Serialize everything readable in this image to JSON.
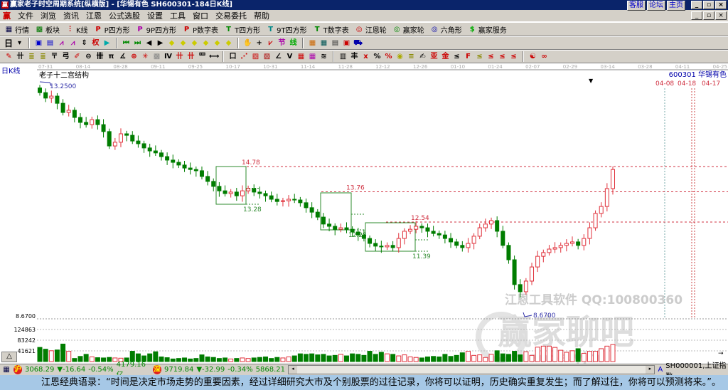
{
  "window": {
    "title": "赢家老子时空周期系统[纵横版] - [华锡有色   SH600301-184日K线]",
    "logo": "赢",
    "links": [
      "客服",
      "论坛",
      "主页"
    ],
    "controls": [
      "_",
      "▫",
      "×"
    ]
  },
  "menu": {
    "items": [
      "文件",
      "浏览",
      "资讯",
      "江恩",
      "公式选股",
      "设置",
      "工具",
      "窗口",
      "交易委托",
      "帮助"
    ]
  },
  "toolbar1": [
    {
      "icon": "quote-grid-icon",
      "glyph": "▦",
      "color": "#004",
      "label": "行情"
    },
    {
      "icon": "sector-blocks-icon",
      "glyph": "▩",
      "color": "#070",
      "label": "板块"
    },
    {
      "icon": "kline-icon",
      "glyph": "⫶",
      "color": "#c00",
      "label": "K线"
    },
    {
      "icon": "ps-icon",
      "glyph": "P",
      "color": "#c00",
      "label": "P四方形"
    },
    {
      "icon": "p9-icon",
      "glyph": "P",
      "color": "#a0a",
      "label": "9P四方形"
    },
    {
      "icon": "pn-icon",
      "glyph": "P",
      "color": "#c00",
      "label": "P数字表"
    },
    {
      "icon": "ts-icon",
      "glyph": "T",
      "color": "#080",
      "label": "T四方形"
    },
    {
      "icon": "t9-icon",
      "glyph": "T",
      "color": "#088",
      "label": "9T四方形"
    },
    {
      "icon": "tn-icon",
      "glyph": "T",
      "color": "#080",
      "label": "T数字表"
    },
    {
      "icon": "gann-wheel-icon",
      "glyph": "◎",
      "color": "#c00",
      "label": "江恩轮"
    },
    {
      "icon": "winner-wheel-icon",
      "glyph": "◎",
      "color": "#080",
      "label": "赢家轮"
    },
    {
      "icon": "hexagon-icon",
      "glyph": "◎",
      "color": "#00a",
      "label": "六角形"
    },
    {
      "icon": "dollar-icon",
      "glyph": "$",
      "color": "#0a0",
      "label": "赢家服务"
    }
  ],
  "toolbar2": {
    "period": "日",
    "icons": [
      {
        "n": "chart-type-icon",
        "g": "▾",
        "c": "#000"
      },
      {
        "n": "sep"
      },
      {
        "n": "draw-icon",
        "g": "▣",
        "c": "#00c"
      },
      {
        "n": "calendar-icon",
        "g": "▤",
        "c": "#00c"
      },
      {
        "n": "indicator1-icon",
        "g": "⩘",
        "c": "#a0a"
      },
      {
        "n": "indicator2-icon",
        "g": "⩘",
        "c": "#a0a"
      },
      {
        "n": "candle-type-icon",
        "g": "⇕",
        "c": "#000"
      },
      {
        "n": "weight-icon",
        "g": "权",
        "c": "#c00"
      },
      {
        "n": "flag-icon",
        "g": "▶",
        "c": "#0aa"
      },
      {
        "n": "sep"
      },
      {
        "n": "first-icon",
        "g": "⏮",
        "c": "#080"
      },
      {
        "n": "last-icon",
        "g": "⏭",
        "c": "#080"
      },
      {
        "n": "left-icon",
        "g": "◀",
        "c": "#000"
      },
      {
        "n": "right-icon",
        "g": "▶",
        "c": "#000"
      },
      {
        "n": "diamond1-icon",
        "g": "◆",
        "c": "#cc0"
      },
      {
        "n": "diamond2-icon",
        "g": "◆",
        "c": "#cc0"
      },
      {
        "n": "diamond3-icon",
        "g": "◆",
        "c": "#cc0"
      },
      {
        "n": "diamond4-icon",
        "g": "◆",
        "c": "#cc0"
      },
      {
        "n": "diamond5-icon",
        "g": "◆",
        "c": "#cc0"
      },
      {
        "n": "diamond6-icon",
        "g": "◆",
        "c": "#cc0"
      },
      {
        "n": "sep"
      },
      {
        "n": "hand-icon",
        "g": "✋",
        "c": "#000"
      },
      {
        "n": "crosshair-icon",
        "g": "+",
        "c": "#000"
      },
      {
        "n": "line-icon",
        "g": "⩗",
        "c": "#c00"
      },
      {
        "n": "festival-icon",
        "g": "节",
        "c": "#a0a"
      },
      {
        "n": "cycle-icon",
        "g": "线",
        "c": "#0a0"
      },
      {
        "n": "sep"
      },
      {
        "n": "date-icon",
        "g": "▦",
        "c": "#c60"
      },
      {
        "n": "calculator-icon",
        "g": "▦",
        "c": "#055"
      },
      {
        "n": "note-icon",
        "g": "▤",
        "c": "#333"
      },
      {
        "n": "save-icon",
        "g": "▣",
        "c": "#c00"
      },
      {
        "n": "truck-icon",
        "g": "⛟",
        "c": "#00a"
      }
    ]
  },
  "toolbar3": {
    "icons": [
      {
        "n": "pen-icon",
        "g": "✎",
        "c": "#c00"
      },
      {
        "n": "parallel-icon",
        "g": "卄",
        "c": "#000"
      },
      {
        "n": "golden1-icon",
        "g": "≣",
        "c": "#880"
      },
      {
        "n": "golden2-icon",
        "g": "≣",
        "c": "#880"
      },
      {
        "n": "fork-icon",
        "g": "〒",
        "c": "#000"
      },
      {
        "n": "arc-icon",
        "g": "弓",
        "c": "#000"
      },
      {
        "n": "brush-icon",
        "g": "✐",
        "c": "#c00"
      },
      {
        "n": "circle-icon",
        "g": "⊖",
        "c": "#000"
      },
      {
        "n": "grid-icon",
        "g": "卌",
        "c": "#000"
      },
      {
        "n": "n2-icon",
        "g": "π",
        "c": "#000"
      },
      {
        "n": "angle-icon",
        "g": "∡",
        "c": "#000"
      },
      {
        "n": "target-icon",
        "g": "⊕",
        "c": "#c00"
      },
      {
        "n": "star-icon",
        "g": "✳",
        "c": "#c00"
      },
      {
        "n": "box-icon",
        "g": "▩",
        "c": "#888"
      },
      {
        "n": "wave-icon",
        "g": "Ⅳ",
        "c": "#000"
      },
      {
        "n": "sector1-icon",
        "g": "卄",
        "c": "#c00"
      },
      {
        "n": "sector2-icon",
        "g": "卄",
        "c": "#c00"
      },
      {
        "n": "ruler-icon",
        "g": "罒",
        "c": "#000"
      },
      {
        "n": "span-icon",
        "g": "⟷",
        "c": "#000"
      },
      {
        "n": "sep"
      },
      {
        "n": "frame-icon",
        "g": "口",
        "c": "#000"
      },
      {
        "n": "fan-icon",
        "g": "⋰",
        "c": "#c00"
      },
      {
        "n": "gann-box-icon",
        "g": "▨",
        "c": "#c00"
      },
      {
        "n": "gann-grid-icon",
        "g": "▨",
        "c": "#a00"
      },
      {
        "n": "angle2-icon",
        "g": "∠",
        "c": "#000"
      },
      {
        "n": "vline-icon",
        "g": "V",
        "c": "#000"
      },
      {
        "n": "square-icon",
        "g": "▦",
        "c": "#c00"
      },
      {
        "n": "square2-icon",
        "g": "▦",
        "c": "#a0a"
      },
      {
        "n": "lines-icon",
        "g": "≋",
        "c": "#000"
      },
      {
        "n": "sep"
      },
      {
        "n": "stats-icon",
        "g": "▥",
        "c": "#000"
      },
      {
        "n": "tool1-icon",
        "g": "丰",
        "c": "#000"
      },
      {
        "n": "tool2-icon",
        "g": "ⅹ",
        "c": "#c00"
      },
      {
        "n": "percent-icon",
        "g": "%",
        "c": "#000"
      },
      {
        "n": "percent2-icon",
        "g": "%",
        "c": "#c00"
      },
      {
        "n": "gold-coin-icon",
        "g": "◉",
        "c": "#aa0"
      },
      {
        "n": "gold-lines-icon",
        "g": "≡",
        "c": "#880"
      },
      {
        "n": "pencil2-icon",
        "g": "✍",
        "c": "#000"
      },
      {
        "n": "tool3-icon",
        "g": "亚",
        "c": "#c00"
      },
      {
        "n": "tool4-icon",
        "g": "金",
        "c": "#c00"
      },
      {
        "n": "tool5-icon",
        "g": "≤",
        "c": "#000"
      },
      {
        "n": "tool6-icon",
        "g": "F",
        "c": "#c00"
      },
      {
        "n": "tool7-icon",
        "g": "≤",
        "c": "#880"
      },
      {
        "n": "tool8-icon",
        "g": "≤",
        "c": "#c00"
      },
      {
        "n": "tool9-icon",
        "g": "≤",
        "c": "#c00"
      },
      {
        "n": "tool10-icon",
        "g": "≤",
        "c": "#c00"
      },
      {
        "n": "sep"
      },
      {
        "n": "yinyang-icon",
        "g": "☯",
        "c": "#c00"
      },
      {
        "n": "infinity-icon",
        "g": "∞",
        "c": "#c00"
      }
    ]
  },
  "chart": {
    "period_label": "日K线",
    "study_label": "老子十二宫结构",
    "stock_label": "600301  华锡有色",
    "date_ticks": [
      "07-31",
      "08-14",
      "08-28",
      "09-11",
      "09-25",
      "10-17",
      "10-31",
      "11-14",
      "11-28",
      "12-12",
      "12-26",
      "01-10",
      "01-24",
      "02-07",
      "02-29",
      "03-14",
      "03-28",
      "04-11",
      "04-25"
    ],
    "high_mark": "13.2500",
    "low_mark": "8.6700",
    "low_axis_label": "8.6700",
    "levels": [
      {
        "label": "14.78",
        "value": 14.78
      },
      {
        "label": "13.76",
        "value": 13.76
      },
      {
        "label": "12.54",
        "value": 12.54
      }
    ],
    "box_lows": [
      "13.28",
      "12.28",
      "11.39"
    ],
    "date_marks": [
      "04-08",
      "04-18",
      "04-17"
    ],
    "volume_ticks": [
      "124863",
      "83242",
      "41621"
    ],
    "watermark1": "江恩工具软件  QQ:100800360",
    "watermark2": "赢家聊吧",
    "watermark3": "liaoba.yjcc",
    "colors": {
      "up": "#e0303a",
      "down": "#007d00",
      "level": "#d03040",
      "box": "#2e8b2e"
    },
    "closes": [
      17.76,
      17.54,
      17.62,
      17.33,
      16.96,
      17.05,
      16.76,
      16.56,
      16.47,
      16.67,
      16.47,
      16.19,
      15.61,
      15.76,
      16.1,
      16.04,
      15.81,
      15.7,
      15.53,
      15.41,
      15.33,
      15.18,
      15.04,
      14.95,
      14.84,
      14.72,
      14.66,
      14.61,
      14.38,
      14.18,
      13.98,
      13.8,
      13.69,
      13.75,
      13.6,
      13.8,
      13.89,
      13.75,
      13.69,
      13.6,
      13.46,
      13.37,
      13.4,
      13.46,
      13.43,
      13.32,
      13.12,
      12.94,
      12.74,
      12.46,
      12.37,
      12.25,
      12.31,
      12.25,
      12.14,
      12.02,
      11.88,
      11.68,
      11.57,
      11.54,
      11.6,
      11.51,
      11.88,
      12.17,
      12.25,
      12.37,
      12.31,
      12.17,
      12.08,
      12.02,
      11.88,
      11.74,
      11.6,
      11.51,
      11.68,
      11.97,
      12.31,
      12.46,
      12.6,
      12.17,
      11.6,
      11.02,
      10.02,
      9.73,
      10.16,
      10.73,
      11.16,
      11.31,
      11.45,
      11.51,
      11.6,
      11.68,
      11.74,
      11.6,
      11.88,
      12.31,
      12.89,
      13.17,
      13.89,
      14.66
    ],
    "volumes": [
      55000,
      48000,
      42000,
      45000,
      68000,
      40000,
      12000,
      20000,
      28000,
      18000,
      15000,
      14000,
      16000,
      14000,
      13000,
      14000,
      40000,
      30000,
      22000,
      30000,
      38000,
      18000,
      15000,
      10000,
      12000,
      14000,
      10000,
      12000,
      26000,
      18000,
      16000,
      12000,
      14000,
      10000,
      12000,
      14000,
      12000,
      14000,
      16000,
      18000,
      12000,
      16000,
      14000,
      18000,
      22000,
      30000,
      28000,
      30000,
      26000,
      28000,
      22000,
      24000,
      28000,
      22000,
      30000,
      28000,
      24000,
      40000,
      28000,
      36000,
      30000,
      28000,
      22000,
      26000,
      18000,
      16000,
      14000,
      18000,
      20000,
      18000,
      28000,
      20000,
      24000,
      34000,
      40000,
      24000,
      26000,
      16000,
      28000,
      42000,
      30000,
      28000,
      40000,
      26000,
      38000,
      24000,
      56000,
      60000,
      60000,
      55000,
      44000,
      36000,
      42000,
      50000,
      32000,
      40000,
      40000,
      50000,
      60000,
      66000
    ]
  },
  "status": {
    "sh_index": "3068.29",
    "sh_change": "▼-16.64",
    "sh_pct": "-0.54%",
    "sh_amount": "4179.16亿",
    "sz_index": "9719.84",
    "sz_change": "▼-32.99",
    "sz_pct": "-0.34%",
    "sz_amount": "5868.21",
    "index_name": "SH000001,上证指数",
    "triangle": "△"
  },
  "quote": "江恩经典语录：“时间是决定市场走势的重要因素，经过详细研究大市及个别股票的过往记录，你将可以证明，历史确实重复发生；而了解过往，你将可以预测将来。”。"
}
